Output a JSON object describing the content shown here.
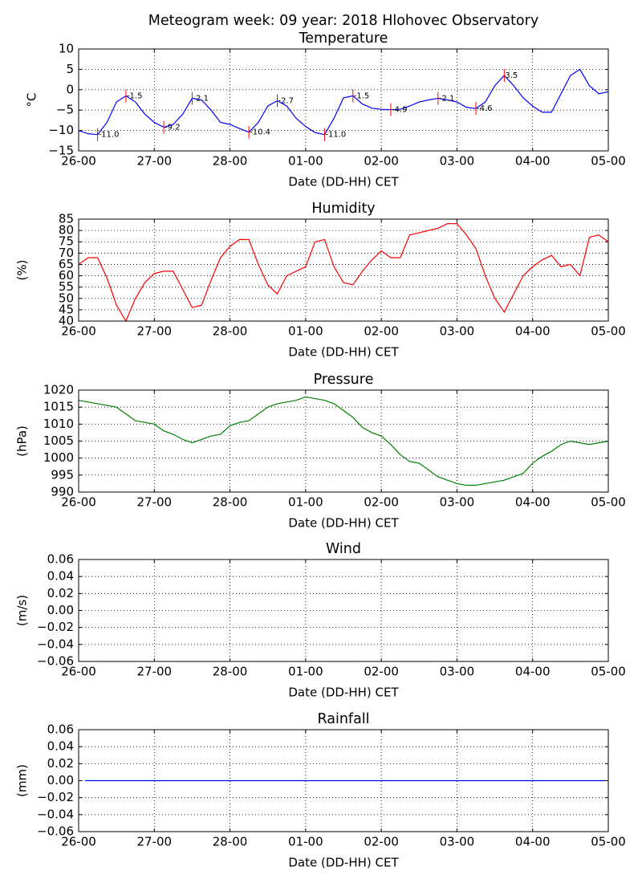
{
  "title": "Meteogram week: 09 year: 2018 Hlohovec Observatory",
  "chart_data": [
    {
      "type": "line",
      "title": "Temperature",
      "xlabel": "Date (DD-HH) CET",
      "ylabel": "°C",
      "x": [
        "26-00",
        "26-03",
        "26-06",
        "26-09",
        "26-12",
        "26-15",
        "26-18",
        "26-21",
        "27-00",
        "27-03",
        "27-06",
        "27-09",
        "27-12",
        "27-15",
        "27-18",
        "27-21",
        "28-00",
        "28-03",
        "28-06",
        "28-09",
        "28-12",
        "28-15",
        "28-18",
        "28-21",
        "01-00",
        "01-03",
        "01-06",
        "01-09",
        "01-12",
        "01-15",
        "01-18",
        "01-21",
        "02-00",
        "02-03",
        "02-06",
        "02-09",
        "02-12",
        "02-15",
        "02-18",
        "02-21",
        "03-00",
        "03-03",
        "03-06",
        "03-09",
        "03-12",
        "03-15",
        "03-18",
        "03-21",
        "04-00",
        "04-03",
        "04-06",
        "04-09",
        "04-12",
        "04-15",
        "04-18",
        "04-21",
        "05-00"
      ],
      "series": [
        {
          "color": "#0000ff",
          "values": [
            -10,
            -10.8,
            -11,
            -8,
            -3,
            -1.5,
            -3,
            -6,
            -8,
            -9.2,
            -8.5,
            -6,
            -2.1,
            -2.5,
            -5,
            -8,
            -8.5,
            -9.5,
            -10.4,
            -8,
            -4,
            -2.7,
            -4,
            -7,
            -9,
            -10.5,
            -11,
            -7,
            -2,
            -1.5,
            -3.5,
            -4.5,
            -4.8,
            -4.9,
            -4.8,
            -4,
            -3,
            -2.5,
            -2.1,
            -2.5,
            -3,
            -4.3,
            -4.6,
            -3,
            1,
            3.5,
            1,
            -2,
            -4,
            -5.5,
            -5.5,
            -1,
            3.5,
            5,
            1,
            -1,
            -0.5
          ]
        }
      ],
      "annotation_color": "#ff0000",
      "annotations": [
        {
          "x": "26-06",
          "value": -11,
          "label": "-11.0"
        },
        {
          "x": "26-15",
          "value": -1.5,
          "label": "-1.5"
        },
        {
          "x": "27-03",
          "value": -9.2,
          "label": "-9.2"
        },
        {
          "x": "27-12",
          "value": -2.1,
          "label": "-2.1"
        },
        {
          "x": "28-06",
          "value": -10.4,
          "label": "-10.4"
        },
        {
          "x": "28-15",
          "value": -2.7,
          "label": "-2.7"
        },
        {
          "x": "01-06",
          "value": -11,
          "label": "-11.0"
        },
        {
          "x": "01-15",
          "value": -1.5,
          "label": "-1.5"
        },
        {
          "x": "02-03",
          "value": -4.9,
          "label": "-4.9"
        },
        {
          "x": "02-18",
          "value": -2.1,
          "label": "-2.1"
        },
        {
          "x": "03-06",
          "value": -4.6,
          "label": "-4.6"
        },
        {
          "x": "03-15",
          "value": 3.5,
          "label": "3.5"
        }
      ],
      "xlim": [
        "26-00",
        "05-00"
      ],
      "xticks": [
        "26-00",
        "27-00",
        "28-00",
        "01-00",
        "02-00",
        "03-00",
        "04-00",
        "05-00"
      ],
      "ylim": [
        -15,
        10
      ],
      "yticks": [
        {
          "value": -15,
          "label": "−15"
        },
        {
          "value": -10,
          "label": "−10"
        },
        {
          "value": -5,
          "label": "−5"
        },
        0,
        5,
        10
      ],
      "grid": true
    },
    {
      "type": "line",
      "title": "Humidity",
      "xlabel": "Date (DD-HH) CET",
      "ylabel": "(%)",
      "x": [
        "26-00",
        "26-03",
        "26-06",
        "26-09",
        "26-12",
        "26-15",
        "26-18",
        "26-21",
        "27-00",
        "27-03",
        "27-06",
        "27-09",
        "27-12",
        "27-15",
        "27-18",
        "27-21",
        "28-00",
        "28-03",
        "28-06",
        "28-09",
        "28-12",
        "28-15",
        "28-18",
        "28-21",
        "01-00",
        "01-03",
        "01-06",
        "01-09",
        "01-12",
        "01-15",
        "01-18",
        "01-21",
        "02-00",
        "02-03",
        "02-06",
        "02-09",
        "02-12",
        "02-15",
        "02-18",
        "02-21",
        "03-00",
        "03-03",
        "03-06",
        "03-09",
        "03-12",
        "03-15",
        "03-18",
        "03-21",
        "04-00",
        "04-03",
        "04-06",
        "04-09",
        "04-12",
        "04-15",
        "04-18",
        "04-21",
        "05-00"
      ],
      "series": [
        {
          "color": "#ff0000",
          "values": [
            65,
            68,
            68,
            59,
            47,
            40,
            50,
            57,
            61,
            62,
            62,
            54,
            46,
            47,
            58,
            68,
            73,
            76,
            76,
            65,
            56,
            52,
            60,
            62,
            64,
            75,
            76,
            64,
            57,
            56,
            62,
            67,
            71,
            68,
            68,
            78,
            79,
            80,
            81,
            83,
            83,
            78,
            72,
            60,
            50,
            44,
            52,
            60,
            64,
            67,
            69,
            64,
            65,
            60,
            77,
            78,
            75
          ]
        }
      ],
      "xlim": [
        "26-00",
        "05-00"
      ],
      "xticks": [
        "26-00",
        "27-00",
        "28-00",
        "01-00",
        "02-00",
        "03-00",
        "04-00",
        "05-00"
      ],
      "ylim": [
        40,
        85
      ],
      "yticks": [
        40,
        45,
        50,
        55,
        60,
        65,
        70,
        75,
        80,
        85
      ],
      "grid": true
    },
    {
      "type": "line",
      "title": "Pressure",
      "xlabel": "Date (DD-HH) CET",
      "ylabel": "(hPa)",
      "x": [
        "26-00",
        "26-03",
        "26-06",
        "26-09",
        "26-12",
        "26-15",
        "26-18",
        "26-21",
        "27-00",
        "27-03",
        "27-06",
        "27-09",
        "27-12",
        "27-15",
        "27-18",
        "27-21",
        "28-00",
        "28-03",
        "28-06",
        "28-09",
        "28-12",
        "28-15",
        "28-18",
        "28-21",
        "01-00",
        "01-03",
        "01-06",
        "01-09",
        "01-12",
        "01-15",
        "01-18",
        "01-21",
        "02-00",
        "02-03",
        "02-06",
        "02-09",
        "02-12",
        "02-15",
        "02-18",
        "02-21",
        "03-00",
        "03-03",
        "03-06",
        "03-09",
        "03-12",
        "03-15",
        "03-18",
        "03-21",
        "04-00",
        "04-03",
        "04-06",
        "04-09",
        "04-12",
        "04-15",
        "04-18",
        "04-21",
        "05-00"
      ],
      "series": [
        {
          "color": "#008000",
          "values": [
            1017,
            1016.5,
            1016,
            1015.5,
            1015,
            1013,
            1011,
            1010.5,
            1010,
            1008,
            1007,
            1005.5,
            1004.5,
            1005.5,
            1006.5,
            1007,
            1009.5,
            1010.5,
            1011,
            1013,
            1015,
            1016,
            1016.5,
            1017,
            1018,
            1017.5,
            1017,
            1016,
            1014,
            1012,
            1009,
            1007.5,
            1006.5,
            1004,
            1001,
            999,
            998.5,
            996.5,
            994.5,
            993.5,
            992.5,
            992,
            992,
            992.5,
            993,
            993.5,
            994.5,
            995.5,
            998.5,
            1000.5,
            1002,
            1004,
            1005,
            1004.5,
            1004,
            1004.5,
            1005
          ]
        }
      ],
      "xlim": [
        "26-00",
        "05-00"
      ],
      "xticks": [
        "26-00",
        "27-00",
        "28-00",
        "01-00",
        "02-00",
        "03-00",
        "04-00",
        "05-00"
      ],
      "ylim": [
        990,
        1020
      ],
      "yticks": [
        990,
        995,
        1000,
        1005,
        1010,
        1015,
        1020
      ],
      "grid": true
    },
    {
      "type": "line",
      "title": "Wind",
      "xlabel": "Date (DD-HH) CET",
      "ylabel": "(m/s)",
      "x": [],
      "series": [],
      "xlim": [
        "26-00",
        "05-00"
      ],
      "xticks": [
        "26-00",
        "27-00",
        "28-00",
        "01-00",
        "02-00",
        "03-00",
        "04-00",
        "05-00"
      ],
      "ylim": [
        -0.06,
        0.06
      ],
      "yticks": [
        {
          "value": -0.06,
          "label": "−0.06"
        },
        {
          "value": -0.04,
          "label": "−0.04"
        },
        {
          "value": -0.02,
          "label": "−0.02"
        },
        {
          "value": 0,
          "label": "0.00"
        },
        0.02,
        0.04,
        0.06
      ],
      "grid": true
    },
    {
      "type": "line",
      "title": "Rainfall",
      "xlabel": "Date (DD-HH) CET",
      "ylabel": "(mm)",
      "x": [
        "26-02",
        "04-23"
      ],
      "series": [
        {
          "color": "#0000ff",
          "values": [
            0,
            0
          ]
        }
      ],
      "xlim": [
        "26-00",
        "05-00"
      ],
      "xticks": [
        "26-00",
        "27-00",
        "28-00",
        "01-00",
        "02-00",
        "03-00",
        "04-00",
        "05-00"
      ],
      "ylim": [
        -0.06,
        0.06
      ],
      "yticks": [
        {
          "value": -0.06,
          "label": "−0.06"
        },
        {
          "value": -0.04,
          "label": "−0.04"
        },
        {
          "value": -0.02,
          "label": "−0.02"
        },
        {
          "value": 0,
          "label": "0.00"
        },
        0.02,
        0.04,
        0.06
      ],
      "grid": true
    }
  ]
}
